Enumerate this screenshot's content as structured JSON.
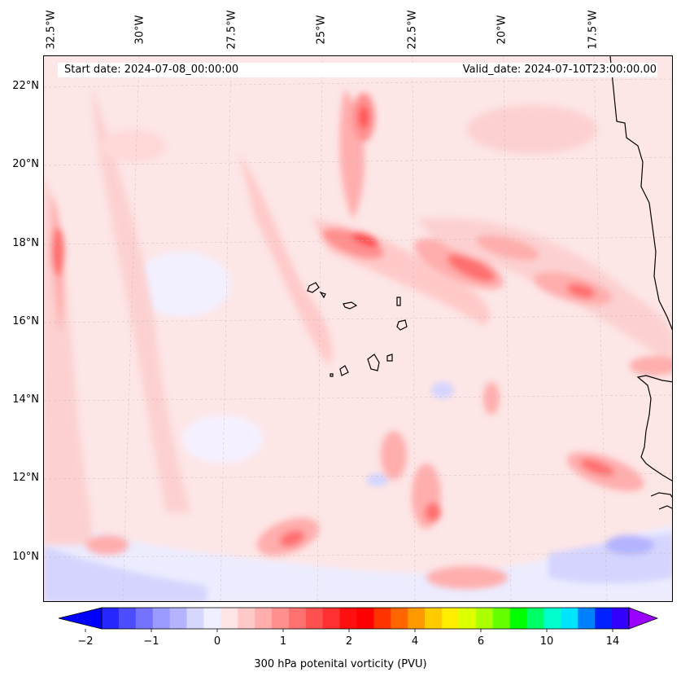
{
  "map": {
    "start_label": "Start date: 2024-07-08_00:00:00",
    "valid_label": "Valid_date: 2024-07-10T23:00:00.00",
    "lon_labels": [
      "32.5°W",
      "30°W",
      "27.5°W",
      "25°W",
      "22.5°W",
      "20°W",
      "17.5°W"
    ],
    "lat_labels": [
      "22°N",
      "20°N",
      "18°N",
      "16°N",
      "14°N",
      "12°N",
      "10°N"
    ],
    "colorbar": {
      "label": "300 hPa potenital vorticity (PVU)",
      "tick_labels": [
        "−2",
        "−1",
        "0",
        "1",
        "2",
        "4",
        "6",
        "10",
        "14"
      ],
      "colors": [
        "#0000ff",
        "#2626ff",
        "#4d4dff",
        "#7373ff",
        "#9a9aff",
        "#b3b3ff",
        "#d6d6ff",
        "#efefff",
        "#ffe5e5",
        "#ffc9c9",
        "#ffadad",
        "#ff8f8f",
        "#ff7070",
        "#ff5050",
        "#ff3030",
        "#ff1010",
        "#ff0000",
        "#ff3300",
        "#ff6600",
        "#ff9900",
        "#ffcc00",
        "#ffee00",
        "#ddff00",
        "#aaff00",
        "#66ff00",
        "#00ff00",
        "#00ff66",
        "#00ffcc",
        "#00e5ff",
        "#0080ff",
        "#0022ff",
        "#3300ff",
        "#9900ff"
      ]
    }
  }
}
